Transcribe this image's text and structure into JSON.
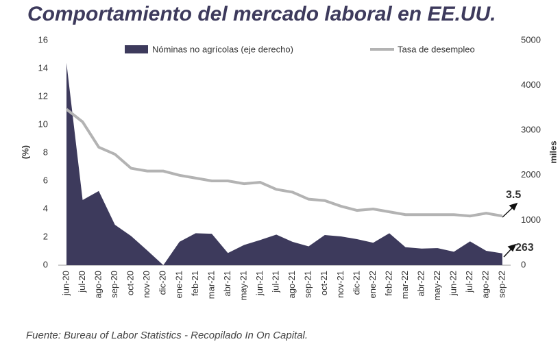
{
  "chart_data": {
    "type": "area-line",
    "title": "Comportamiento del mercado laboral en EE.UU.",
    "source": "Fuente: Bureau of Labor Statistics - Recopilado In On Capital.",
    "y_label": "(%)",
    "y2_label": "miles",
    "categories": [
      "jun-20",
      "jul-20",
      "ago-20",
      "sep-20",
      "oct-20",
      "nov-20",
      "dic-20",
      "ene-21",
      "feb-21",
      "mar-21",
      "abr-21",
      "may-21",
      "jun-21",
      "jul-21",
      "ago-21",
      "sep-21",
      "oct-21",
      "nov-21",
      "dic-21",
      "ene-22",
      "feb-22",
      "mar-22",
      "abr-22",
      "may-22",
      "jun-22",
      "jul-22",
      "ago-22",
      "sep-22"
    ],
    "series": [
      {
        "name": "Nóminas no agrícolas (eje derecho)",
        "color": "#3d3a5c",
        "axis": "y2",
        "values": [
          4500,
          1450,
          1650,
          900,
          650,
          330,
          0,
          520,
          710,
          700,
          270,
          450,
          560,
          680,
          520,
          420,
          670,
          640,
          580,
          500,
          710,
          400,
          370,
          380,
          300,
          530,
          320,
          263
        ]
      },
      {
        "name": "Tasa de desempleo",
        "color": "#b3b3b3",
        "axis": "y",
        "values": [
          11.1,
          10.2,
          8.4,
          7.9,
          6.9,
          6.7,
          6.7,
          6.4,
          6.2,
          6.0,
          6.0,
          5.8,
          5.9,
          5.4,
          5.2,
          4.7,
          4.6,
          4.2,
          3.9,
          4.0,
          3.8,
          3.6,
          3.6,
          3.6,
          3.6,
          3.5,
          3.7,
          3.5
        ]
      }
    ],
    "ylim": [
      0,
      16
    ],
    "yticks": [
      0,
      2,
      4,
      6,
      8,
      10,
      12,
      14,
      16
    ],
    "y2lim": [
      0,
      5000
    ],
    "y2ticks": [
      0,
      1000,
      2000,
      3000,
      4000,
      5000
    ]
  }
}
